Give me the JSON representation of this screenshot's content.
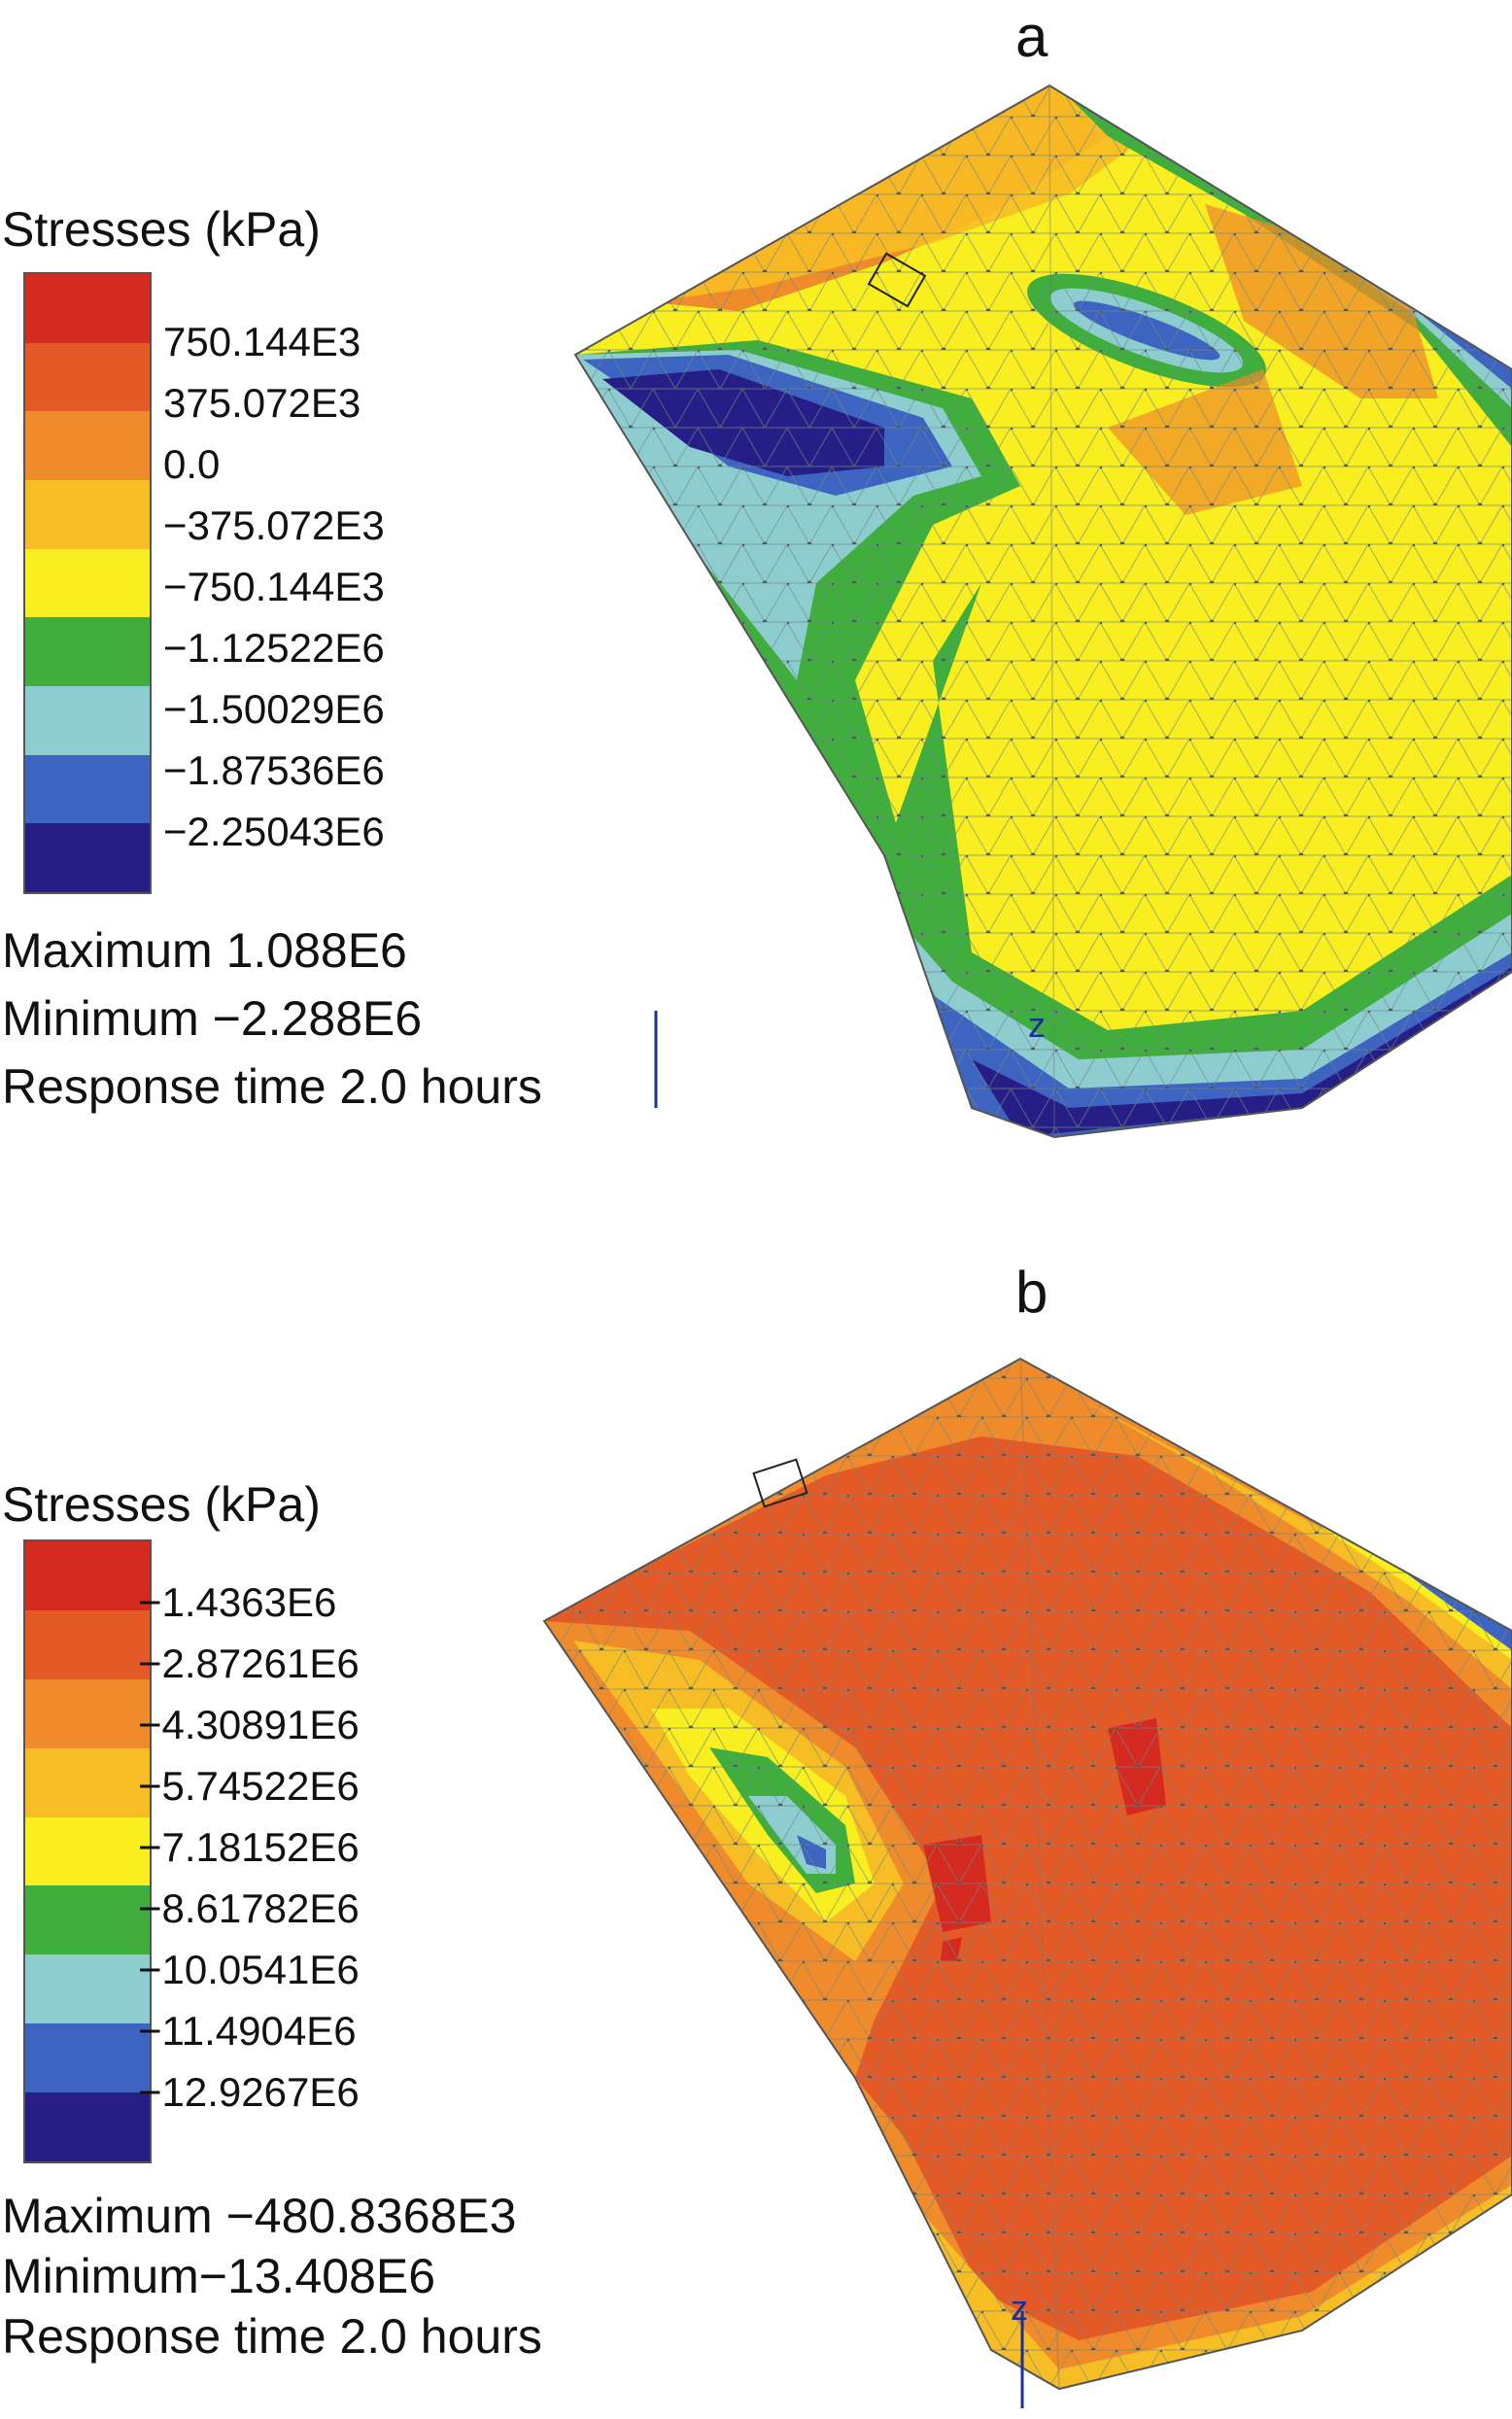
{
  "panel_a": {
    "letter": "a",
    "legend_title": "Stresses (kPa)",
    "labels": [
      "750.144E3",
      "375.072E3",
      "0.0",
      "−375.072E3",
      "−750.144E3",
      "−1.12522E6",
      "−1.50029E6",
      "−1.87536E6",
      "−2.25043E6"
    ],
    "colors": [
      "#d42a20",
      "#e35a26",
      "#ef8b2a",
      "#f7bd24",
      "#f9ee1f",
      "#3fae3c",
      "#8dcdd0",
      "#3c64c0",
      "#261e86"
    ],
    "maximum": "Maximum 1.088E6",
    "minimum": "Minimum −2.288E6",
    "response_time": "Response time 2.0 hours",
    "axis": "z"
  },
  "panel_b": {
    "letter": "b",
    "legend_title": "Stresses (kPa)",
    "labels": [
      "−1.4363E6",
      "−2.87261E6",
      "−4.30891E6",
      "−5.74522E6",
      "−7.18152E6",
      "−8.61782E6",
      "−10.0541E6",
      "−11.4904E6",
      "−12.9267E6"
    ],
    "colors": [
      "#d42a20",
      "#e35a26",
      "#ef8b2a",
      "#f7bd24",
      "#f9ee1f",
      "#3fae3c",
      "#8dcdd0",
      "#3c64c0",
      "#261e86"
    ],
    "maximum": "Maximum −480.8368E3",
    "minimum": "Minimum−13.408E6",
    "response_time": "Response time 2.0 hours",
    "axis": "z"
  }
}
